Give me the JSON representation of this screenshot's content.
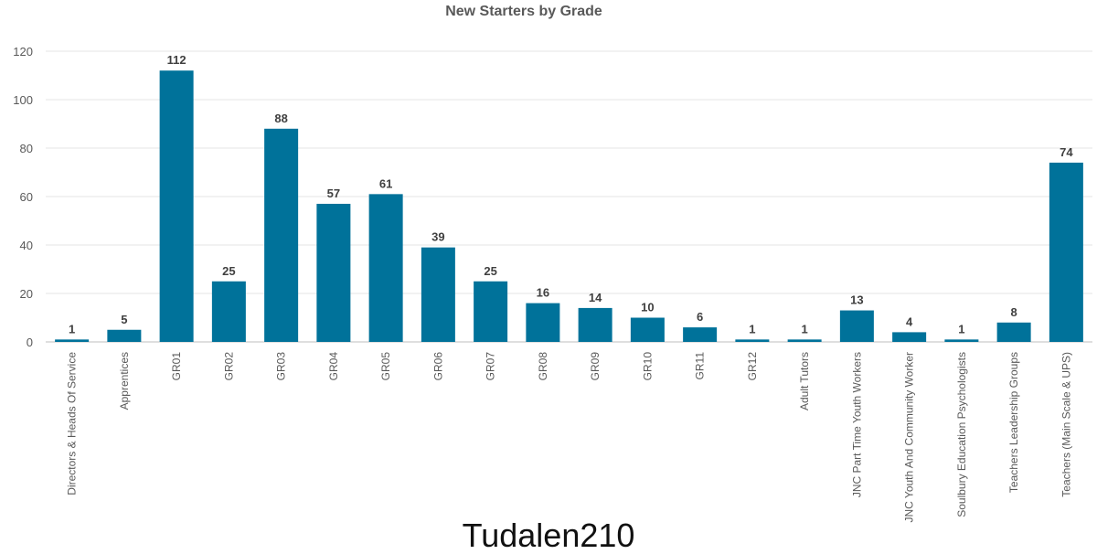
{
  "caption": "Tudalen210",
  "chart_data": {
    "type": "bar",
    "title": "New Starters by Grade",
    "xlabel": "",
    "ylabel": "",
    "ylim": [
      0,
      120
    ],
    "yticks": [
      0,
      20,
      40,
      60,
      80,
      100,
      120
    ],
    "grid": true,
    "bar_color": "#00729a",
    "categories": [
      "Directors & Heads Of Service",
      "Apprentices",
      "GR01",
      "GR02",
      "GR03",
      "GR04",
      "GR05",
      "GR06",
      "GR07",
      "GR08",
      "GR09",
      "GR10",
      "GR11",
      "GR12",
      "Adult Tutors",
      "JNC Part Time Youth Workers",
      "JNC Youth And Community Worker",
      "Soulbury Education Psychologists",
      "Teachers Leadership Groups",
      "Teachers (Main Scale & UPS)"
    ],
    "values": [
      1,
      5,
      112,
      25,
      88,
      57,
      61,
      39,
      25,
      16,
      14,
      10,
      6,
      1,
      1,
      13,
      4,
      1,
      8,
      74
    ],
    "data_labels": true
  }
}
